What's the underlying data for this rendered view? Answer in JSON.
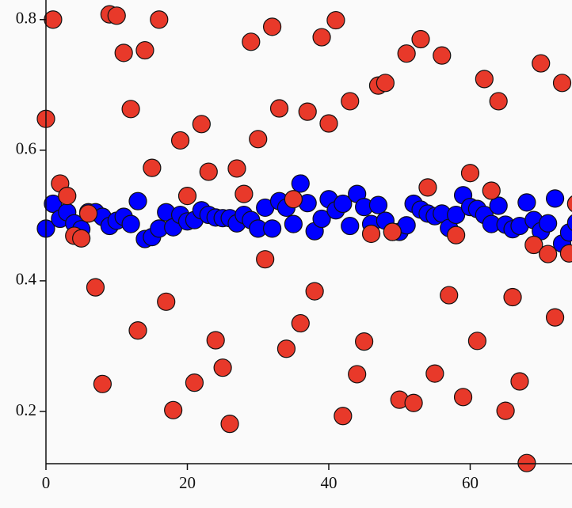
{
  "chart_data": {
    "type": "scatter",
    "xlim": [
      0,
      74.4
    ],
    "ylim": [
      0.12,
      0.83
    ],
    "xticks": [
      0,
      20,
      40,
      60
    ],
    "yticks": [
      0.2,
      0.4,
      0.6,
      0.8
    ],
    "series": [
      {
        "color": "#0000ff",
        "x": [
          0,
          1,
          2,
          3,
          4,
          5,
          6,
          7,
          8,
          9,
          10,
          11,
          12,
          13,
          14,
          15,
          16,
          17,
          18,
          19,
          20,
          21,
          22,
          23,
          24,
          25,
          26,
          27,
          28,
          29,
          30,
          31,
          32,
          33,
          34,
          35,
          36,
          37,
          38,
          39,
          40,
          41,
          42,
          43,
          44,
          45,
          46,
          47,
          48,
          49,
          50,
          51,
          52,
          53,
          54,
          55,
          56,
          57,
          58,
          59,
          60,
          61,
          62,
          63,
          64,
          65,
          66,
          67,
          68,
          69,
          70,
          71,
          72,
          73,
          74,
          75
        ],
        "values": [
          0.48,
          0.518,
          0.495,
          0.505,
          0.488,
          0.479,
          0.505,
          0.505,
          0.498,
          0.484,
          0.492,
          0.498,
          0.487,
          0.522,
          0.464,
          0.467,
          0.48,
          0.505,
          0.482,
          0.501,
          0.491,
          0.493,
          0.508,
          0.501,
          0.497,
          0.496,
          0.496,
          0.488,
          0.501,
          0.493,
          0.48,
          0.512,
          0.48,
          0.522,
          0.512,
          0.487,
          0.549,
          0.519,
          0.476,
          0.495,
          0.525,
          0.508,
          0.518,
          0.484,
          0.533,
          0.513,
          0.487,
          0.516,
          0.492,
          0.475,
          0.475,
          0.485,
          0.518,
          0.509,
          0.503,
          0.499,
          0.503,
          0.481,
          0.501,
          0.531,
          0.513,
          0.51,
          0.501,
          0.487,
          0.515,
          0.486,
          0.479,
          0.484,
          0.52,
          0.493,
          0.476,
          0.488,
          0.526,
          0.457,
          0.474,
          0.489
        ]
      },
      {
        "color": "#e8392a",
        "x": [
          0,
          1,
          2,
          3,
          4,
          5,
          6,
          7,
          8,
          9,
          10,
          11,
          12,
          13,
          14,
          15,
          16,
          17,
          18,
          19,
          20,
          21,
          22,
          23,
          24,
          25,
          26,
          27,
          28,
          29,
          30,
          31,
          32,
          33,
          34,
          35,
          36,
          37,
          38,
          39,
          40,
          41,
          42,
          43,
          44,
          45,
          46,
          47,
          48,
          49,
          50,
          51,
          52,
          53,
          54,
          55,
          56,
          57,
          58,
          59,
          60,
          61,
          62,
          63,
          64,
          65,
          66,
          67,
          68,
          69,
          70,
          71,
          72,
          73,
          74,
          75
        ],
        "values": [
          0.648,
          0.8,
          0.549,
          0.53,
          0.469,
          0.465,
          0.503,
          0.39,
          0.242,
          0.808,
          0.806,
          0.749,
          0.663,
          0.324,
          0.753,
          0.573,
          0.8,
          0.368,
          0.202,
          0.615,
          0.53,
          0.244,
          0.64,
          0.567,
          0.309,
          0.267,
          0.181,
          0.572,
          0.533,
          0.766,
          0.617,
          0.433,
          0.789,
          0.664,
          0.296,
          0.525,
          0.335,
          0.659,
          0.384,
          0.773,
          0.641,
          0.799,
          0.193,
          0.675,
          0.257,
          0.307,
          0.472,
          0.699,
          0.703,
          0.475,
          0.218,
          0.748,
          0.213,
          0.77,
          0.543,
          0.258,
          0.745,
          0.378,
          0.47,
          0.222,
          0.565,
          0.308,
          0.709,
          0.538,
          0.675,
          0.201,
          0.375,
          0.246,
          0.121,
          0.455,
          0.733,
          0.441,
          0.344,
          0.703,
          0.442,
          0.518
        ]
      }
    ]
  }
}
